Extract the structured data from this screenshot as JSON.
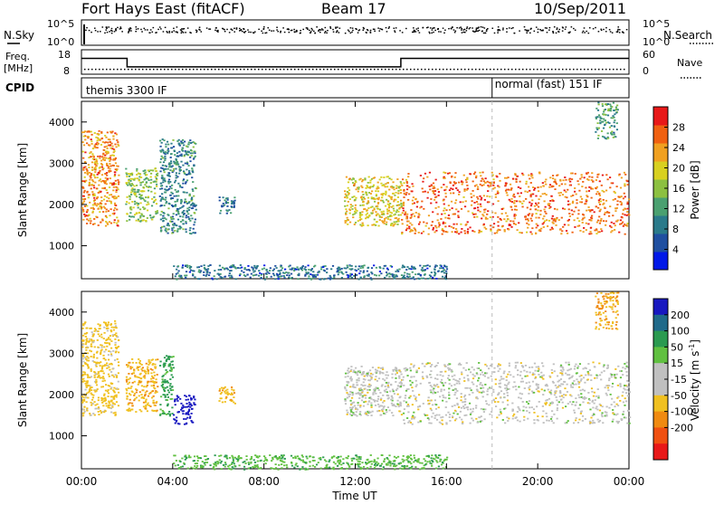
{
  "header": {
    "station": "Fort Hays East (fitACF)",
    "beam": "Beam 17",
    "date": "10/Sep/2011"
  },
  "noise_panel": {
    "left_label": "N.Sky",
    "right_label": "N.Search",
    "left_ticks": [
      "10^5",
      "10^0"
    ],
    "right_ticks": [
      "10^5",
      "10^0"
    ]
  },
  "freq_panel": {
    "left_label_1": "Freq.",
    "left_label_2": "[MHz]",
    "right_label": "Nave",
    "left_ticks": [
      "18",
      "8"
    ],
    "right_ticks": [
      "60",
      "0"
    ],
    "freq_steps": [
      {
        "start_hour": 0.0,
        "end_hour": 2.0,
        "freq_mhz": 14.5
      },
      {
        "start_hour": 2.0,
        "end_hour": 14.0,
        "freq_mhz": 11.0
      },
      {
        "start_hour": 14.0,
        "end_hour": 24.0,
        "freq_mhz": 14.5
      }
    ],
    "nave_level": 12
  },
  "cpid_panel": {
    "label": "CPID",
    "segments": [
      {
        "text": "themis 3300 IF",
        "start_hour": 0.0
      },
      {
        "text": "normal (fast) 151 IF",
        "start_hour": 18.0
      }
    ]
  },
  "time_axis": {
    "label": "Time UT",
    "ticks": [
      "00:00",
      "04:00",
      "08:00",
      "12:00",
      "16:00",
      "20:00",
      "00:00"
    ],
    "tick_hours": [
      0,
      4,
      8,
      12,
      16,
      20,
      24
    ]
  },
  "range_axis": {
    "label": "Slant Range [km]",
    "ticks": [
      "1000",
      "2000",
      "3000",
      "4000"
    ],
    "tick_values": [
      1000,
      2000,
      3000,
      4000
    ],
    "range": [
      200,
      4500
    ]
  },
  "colors": {
    "power": [
      "#0018e8",
      "#1f4fa0",
      "#2a7a8a",
      "#4aa070",
      "#8cc040",
      "#d8d020",
      "#f0a020",
      "#f06010",
      "#e81818"
    ],
    "velocity": [
      "#e81818",
      "#f05010",
      "#f08a10",
      "#f0c020",
      "#c0c0c0",
      "#c0c0c0",
      "#60c040",
      "#2a9a50",
      "#206a8a",
      "#1818c0"
    ]
  },
  "power_colorbar": {
    "label": "Power [dB]",
    "ticks": [
      "28",
      "24",
      "20",
      "16",
      "12",
      "8",
      "4"
    ],
    "tick_values": [
      28,
      24,
      20,
      16,
      12,
      8,
      4
    ],
    "range": [
      0,
      32
    ]
  },
  "velocity_colorbar": {
    "label": "Velocity [m s",
    "label_sup": "-1",
    "label_end": "]",
    "ticks": [
      "200",
      "100",
      "50",
      "15",
      "-15",
      "-50",
      "-100",
      "-200"
    ]
  },
  "chart_data": [
    {
      "type": "heatmap",
      "title": "Power",
      "xlabel": "Time UT",
      "ylabel": "Slant Range [km]",
      "xlim": [
        0,
        24
      ],
      "ylim": [
        200,
        4500
      ],
      "colorbar_range_db": [
        0,
        32
      ],
      "echo_regions": [
        {
          "time_start": 0.0,
          "time_end": 1.6,
          "range_low": 1500,
          "range_high": 3800,
          "power_db": 24
        },
        {
          "time_start": 1.9,
          "time_end": 3.3,
          "range_low": 1600,
          "range_high": 2900,
          "power_db": 16
        },
        {
          "time_start": 3.4,
          "time_end": 5.0,
          "range_low": 1300,
          "range_high": 3600,
          "power_db": 10
        },
        {
          "time_start": 6.0,
          "time_end": 6.7,
          "range_low": 1800,
          "range_high": 2200,
          "power_db": 8
        },
        {
          "time_start": 11.5,
          "time_end": 14.0,
          "range_low": 1500,
          "range_high": 2700,
          "power_db": 20
        },
        {
          "time_start": 14.0,
          "time_end": 24.0,
          "range_low": 1300,
          "range_high": 2800,
          "power_db": 26
        },
        {
          "time_start": 22.5,
          "time_end": 23.5,
          "range_low": 3600,
          "range_high": 4500,
          "power_db": 12
        },
        {
          "time_start": 4.0,
          "time_end": 16.0,
          "range_low": 200,
          "range_high": 550,
          "power_db": 8
        }
      ]
    },
    {
      "type": "heatmap",
      "title": "Velocity",
      "xlabel": "Time UT",
      "ylabel": "Slant Range [km]",
      "xlim": [
        0,
        24
      ],
      "ylim": [
        200,
        4500
      ],
      "colorbar_range_ms": [
        -200,
        200
      ],
      "echo_regions": [
        {
          "time_start": 0.0,
          "time_end": 1.6,
          "range_low": 1500,
          "range_high": 3800,
          "velocity_ms": -30
        },
        {
          "time_start": 1.9,
          "time_end": 3.3,
          "range_low": 1600,
          "range_high": 2900,
          "velocity_ms": -40
        },
        {
          "time_start": 3.4,
          "time_end": 4.0,
          "range_low": 1500,
          "range_high": 3000,
          "velocity_ms": 60
        },
        {
          "time_start": 4.0,
          "time_end": 5.0,
          "range_low": 1300,
          "range_high": 2000,
          "velocity_ms": 220
        },
        {
          "time_start": 6.0,
          "time_end": 6.7,
          "range_low": 1800,
          "range_high": 2200,
          "velocity_ms": -40
        },
        {
          "time_start": 11.5,
          "time_end": 14.0,
          "range_low": 1500,
          "range_high": 2700,
          "velocity_ms": 0
        },
        {
          "time_start": 14.0,
          "time_end": 24.0,
          "range_low": 1300,
          "range_high": 2800,
          "velocity_ms": 0
        },
        {
          "time_start": 22.5,
          "time_end": 23.5,
          "range_low": 3600,
          "range_high": 4500,
          "velocity_ms": -50
        },
        {
          "time_start": 4.0,
          "time_end": 16.0,
          "range_low": 200,
          "range_high": 550,
          "velocity_ms": 40
        }
      ]
    }
  ]
}
